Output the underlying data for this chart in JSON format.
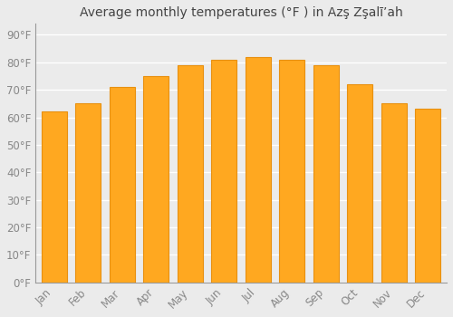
{
  "title": "Average monthly temperatures (°F ) in Azş Zşalīʼah",
  "months": [
    "Jan",
    "Feb",
    "Mar",
    "Apr",
    "May",
    "Jun",
    "Jul",
    "Aug",
    "Sep",
    "Oct",
    "Nov",
    "Dec"
  ],
  "values": [
    62,
    65,
    71,
    75,
    79,
    81,
    82,
    81,
    79,
    72,
    65,
    63
  ],
  "bar_color": "#FFA820",
  "bar_edge_color": "#E89010",
  "background_color": "#ebebeb",
  "grid_color": "#ffffff",
  "yticks": [
    0,
    10,
    20,
    30,
    40,
    50,
    60,
    70,
    80,
    90
  ],
  "ylim": [
    0,
    94
  ],
  "title_fontsize": 10,
  "tick_fontsize": 8.5,
  "tick_color": "#888888"
}
